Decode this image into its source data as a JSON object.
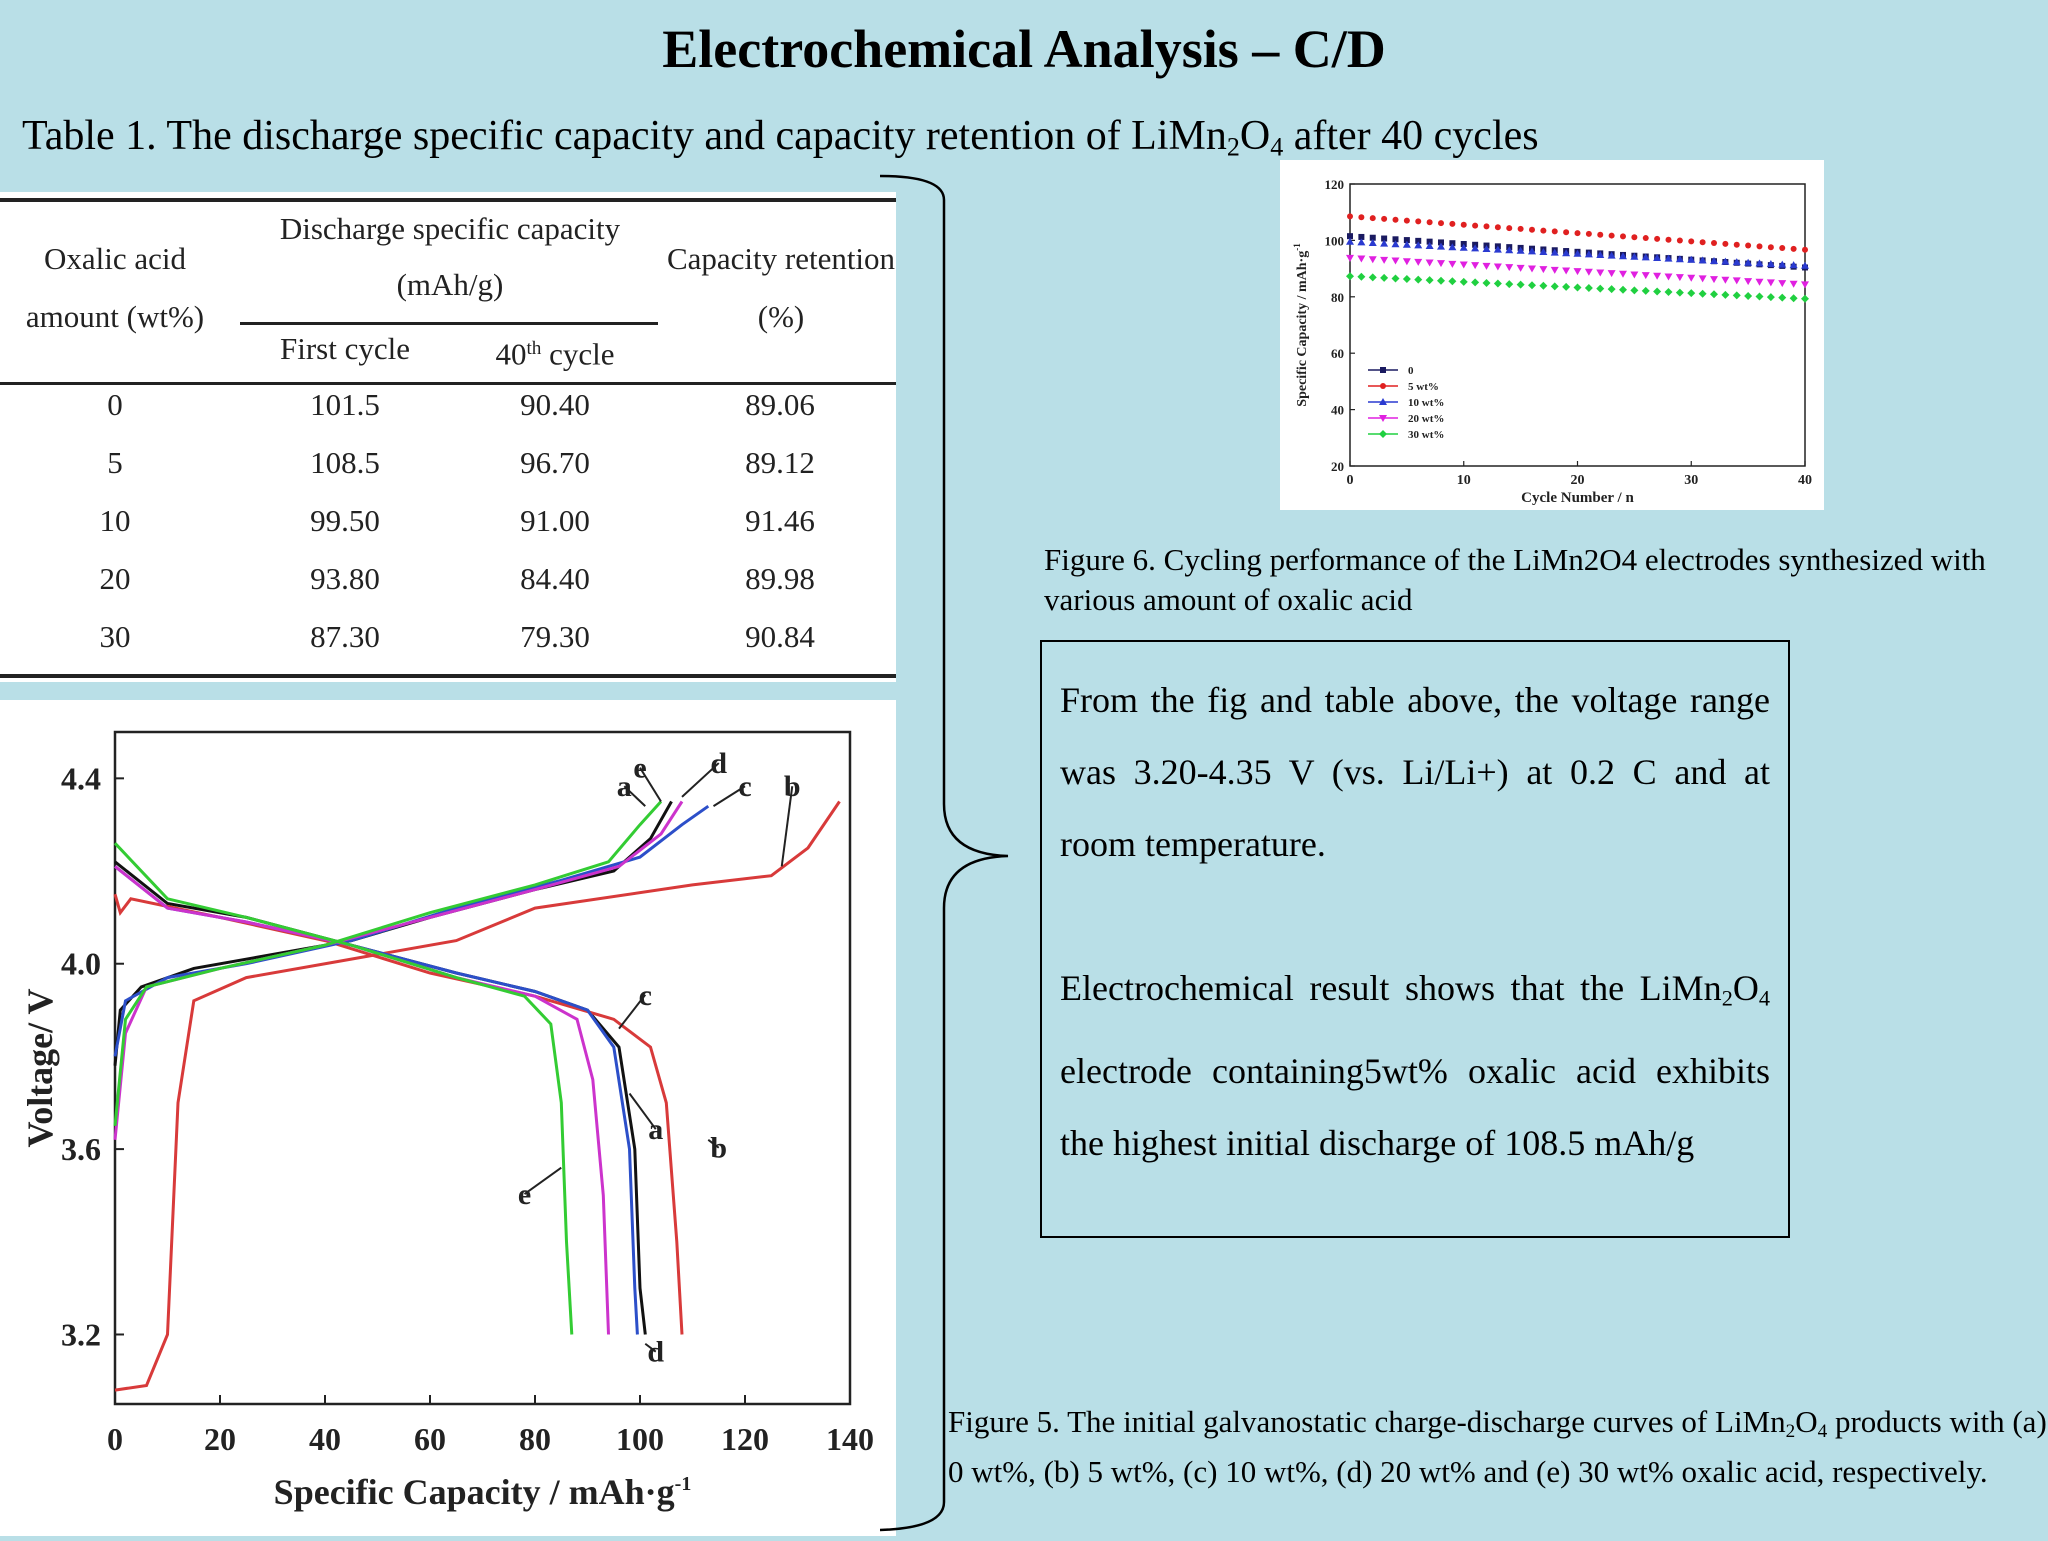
{
  "slide": {
    "title": "Electrochemical Analysis – C/D",
    "subtitle": {
      "prefix": "Table 1. The discharge specific capacity and capacity retention of LiMn",
      "sub1": "2",
      "mid": "O",
      "sub2": "4",
      "suffix": " after 40 cycles"
    }
  },
  "table": {
    "col_oxalic_1": "Oxalic acid",
    "col_oxalic_2": "amount (wt%)",
    "col_discharge_1": "Discharge specific capacity",
    "col_discharge_2": "(mAh/g)",
    "col_first": "First cycle",
    "col_40_num": "40",
    "col_40_sup": "th",
    "col_40_rest": " cycle",
    "col_retention_1": "Capacity retention",
    "col_retention_2": "(%)",
    "rows": [
      [
        "0",
        "101.5",
        "90.40",
        "89.06"
      ],
      [
        "5",
        "108.5",
        "96.70",
        "89.12"
      ],
      [
        "10",
        "99.50",
        "91.00",
        "91.46"
      ],
      [
        "20",
        "93.80",
        "84.40",
        "89.98"
      ],
      [
        "30",
        "87.30",
        "79.30",
        "90.84"
      ]
    ]
  },
  "figure6": {
    "caption": "Figure 6. Cycling performance of the LiMn2O4 electrodes synthesized with various amount of oxalic acid"
  },
  "figure5": {
    "caption": {
      "p1": "Figure 5. The initial galvanostatic charge-discharge curves of LiMn",
      "sub1": "2",
      "p2": "O",
      "sub2": "4",
      "p3": " products with (a) 0 wt%, (b) 5 wt%, (c) 10 wt%, (d) 20 wt% and (e) 30 wt% oxalic acid, respectively."
    }
  },
  "textbox": {
    "para1": "From the fig and table above, the voltage range was 3.20-4.35 V (vs. Li/Li+) at 0.2 C and at room temperature.",
    "para2_a": "Electrochemical result shows that the LiMn",
    "para2_sub1": "2",
    "para2_b": "O",
    "para2_sub2": "4",
    "para2_c": " electrode containing5wt% oxalic acid exhibits the highest initial discharge of 108.5 mAh/g"
  },
  "chart_data": [
    {
      "type": "line",
      "figure": "figure5",
      "xlabel": "Specific Capacity / mAh·g",
      "xlabel_sup": "-1",
      "ylabel": "Voltage/ V",
      "xlim": [
        0,
        140
      ],
      "ylim": [
        3.05,
        4.5
      ],
      "x_ticks": [
        0,
        20,
        40,
        60,
        80,
        100,
        120,
        140
      ],
      "y_ticks": [
        3.2,
        3.6,
        4.0,
        4.4
      ],
      "y_tick_labels": [
        "3.2",
        "3.6",
        "4.0",
        "4.4"
      ],
      "series": [
        {
          "name": "a",
          "color": "#111111",
          "charge": [
            [
              0,
              3.78
            ],
            [
              1,
              3.9
            ],
            [
              5,
              3.95
            ],
            [
              15,
              3.99
            ],
            [
              30,
              4.02
            ],
            [
              45,
              4.05
            ],
            [
              60,
              4.1
            ],
            [
              80,
              4.16
            ],
            [
              95,
              4.2
            ],
            [
              102,
              4.27
            ],
            [
              106,
              4.35
            ]
          ],
          "discharge": [
            [
              0,
              4.22
            ],
            [
              10,
              4.13
            ],
            [
              25,
              4.1
            ],
            [
              45,
              4.04
            ],
            [
              65,
              3.98
            ],
            [
              80,
              3.94
            ],
            [
              90,
              3.9
            ],
            [
              96,
              3.82
            ],
            [
              99,
              3.6
            ],
            [
              100,
              3.3
            ],
            [
              101,
              3.2
            ]
          ]
        },
        {
          "name": "b",
          "color": "#d83a3a",
          "charge": [
            [
              0,
              3.08
            ],
            [
              6,
              3.09
            ],
            [
              10,
              3.2
            ],
            [
              12,
              3.7
            ],
            [
              15,
              3.92
            ],
            [
              25,
              3.97
            ],
            [
              45,
              4.01
            ],
            [
              65,
              4.05
            ],
            [
              80,
              4.12
            ],
            [
              110,
              4.17
            ],
            [
              125,
              4.19
            ],
            [
              132,
              4.25
            ],
            [
              138,
              4.35
            ]
          ],
          "discharge": [
            [
              0,
              4.15
            ],
            [
              1,
              4.11
            ],
            [
              3,
              4.14
            ],
            [
              20,
              4.1
            ],
            [
              40,
              4.05
            ],
            [
              60,
              3.98
            ],
            [
              80,
              3.93
            ],
            [
              95,
              3.88
            ],
            [
              102,
              3.82
            ],
            [
              105,
              3.7
            ],
            [
              107,
              3.4
            ],
            [
              108,
              3.2
            ]
          ]
        },
        {
          "name": "c",
          "color": "#2c4fc9",
          "charge": [
            [
              0,
              3.8
            ],
            [
              2,
              3.92
            ],
            [
              10,
              3.97
            ],
            [
              25,
              4.0
            ],
            [
              45,
              4.05
            ],
            [
              65,
              4.12
            ],
            [
              85,
              4.18
            ],
            [
              100,
              4.23
            ],
            [
              108,
              4.3
            ],
            [
              113,
              4.34
            ]
          ],
          "discharge": [
            [
              0,
              4.21
            ],
            [
              10,
              4.12
            ],
            [
              25,
              4.09
            ],
            [
              45,
              4.04
            ],
            [
              65,
              3.98
            ],
            [
              80,
              3.94
            ],
            [
              90,
              3.9
            ],
            [
              95,
              3.82
            ],
            [
              98,
              3.6
            ],
            [
              99,
              3.3
            ],
            [
              99.5,
              3.2
            ]
          ]
        },
        {
          "name": "d",
          "color": "#cc33cc",
          "charge": [
            [
              0,
              3.62
            ],
            [
              2,
              3.85
            ],
            [
              6,
              3.95
            ],
            [
              20,
              3.99
            ],
            [
              40,
              4.04
            ],
            [
              60,
              4.1
            ],
            [
              80,
              4.16
            ],
            [
              96,
              4.21
            ],
            [
              104,
              4.28
            ],
            [
              108,
              4.35
            ]
          ],
          "discharge": [
            [
              0,
              4.21
            ],
            [
              10,
              4.12
            ],
            [
              25,
              4.09
            ],
            [
              45,
              4.04
            ],
            [
              65,
              3.97
            ],
            [
              80,
              3.93
            ],
            [
              88,
              3.88
            ],
            [
              91,
              3.75
            ],
            [
              93,
              3.5
            ],
            [
              94,
              3.2
            ]
          ]
        },
        {
          "name": "e",
          "color": "#33cc33",
          "charge": [
            [
              0,
              3.65
            ],
            [
              2,
              3.88
            ],
            [
              6,
              3.95
            ],
            [
              20,
              3.99
            ],
            [
              40,
              4.04
            ],
            [
              60,
              4.11
            ],
            [
              80,
              4.17
            ],
            [
              94,
              4.22
            ],
            [
              100,
              4.3
            ],
            [
              104,
              4.35
            ]
          ],
          "discharge": [
            [
              0,
              4.26
            ],
            [
              10,
              4.14
            ],
            [
              25,
              4.1
            ],
            [
              45,
              4.04
            ],
            [
              65,
              3.97
            ],
            [
              78,
              3.93
            ],
            [
              83,
              3.87
            ],
            [
              85,
              3.7
            ],
            [
              86,
              3.4
            ],
            [
              87,
              3.2
            ]
          ]
        }
      ],
      "annotations": [
        "a",
        "b",
        "c",
        "d",
        "e",
        "a",
        "b",
        "c",
        "d",
        "e"
      ]
    },
    {
      "type": "scatter",
      "figure": "figure6",
      "xlabel": "Cycle Number / n",
      "ylabel": "Specific Capacity / mAh·g",
      "ylabel_sup": "-1",
      "xlim": [
        0,
        40
      ],
      "ylim": [
        20,
        120
      ],
      "x_ticks": [
        0,
        10,
        20,
        30,
        40
      ],
      "y_ticks": [
        20,
        40,
        60,
        80,
        100,
        120
      ],
      "legend_position": "bottom-left",
      "series": [
        {
          "name": "0",
          "color": "#1a1a60",
          "marker": "square",
          "start": 101.5,
          "end": 90.4
        },
        {
          "name": "5 wt%",
          "color": "#e02020",
          "marker": "circle",
          "start": 108.5,
          "end": 96.7
        },
        {
          "name": "10 wt%",
          "color": "#2a3ad0",
          "marker": "triangle-up",
          "start": 99.5,
          "end": 91.0
        },
        {
          "name": "20 wt%",
          "color": "#e020e0",
          "marker": "triangle-down",
          "start": 93.8,
          "end": 84.4
        },
        {
          "name": "30 wt%",
          "color": "#20d040",
          "marker": "diamond",
          "start": 87.3,
          "end": 79.3
        }
      ]
    }
  ]
}
